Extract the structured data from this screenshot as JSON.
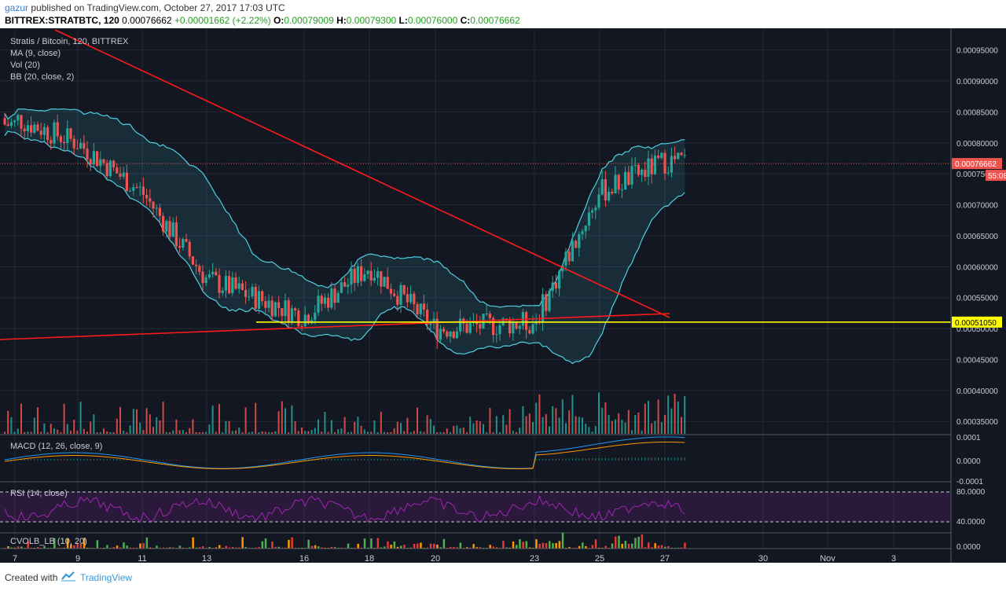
{
  "header": {
    "author": "gazur",
    "published": "published on TradingView.com, October 27, 2017 17:03 UTC",
    "symbol": "BITTREX:STRATBTC, 120",
    "last_price": "0.00076662",
    "change": "+0.00001662 (+2.22%)",
    "o_label": "O:",
    "o_value": "0.00079009",
    "h_label": "H:",
    "h_value": "0.00079300",
    "l_label": "L:",
    "l_value": "0.00076000",
    "c_label": "C:",
    "c_value": "0.00076662"
  },
  "colors": {
    "background": "#131722",
    "up": "#26a69a",
    "down": "#ef5350",
    "bollinger": "#4dd0e1",
    "trendline": "#ff1a1a",
    "support_line": "#ffff00",
    "macd_line": "#2196f3",
    "signal_line": "#ff9800",
    "rsi_line": "#9c27b0"
  },
  "chart": {
    "legend": [
      "Stratis / Bitcoin, 120, BITTREX",
      "MA (9, close)",
      "Vol (20)",
      "BB (20, close, 2)"
    ],
    "y_ticks": [
      "0.00095000",
      "0.00090000",
      "0.00085000",
      "0.00080000",
      "0.00075000",
      "0.00070000",
      "0.00065000",
      "0.00060000",
      "0.00055000",
      "0.00050000",
      "0.00045000",
      "0.00040000",
      "0.00035000"
    ],
    "price_tag": "0.00076662",
    "countdown_tag": "55:08",
    "support_tag": "0.00051050",
    "x_ticks": [
      "7",
      "9",
      "11",
      "13",
      "16",
      "18",
      "20",
      "23",
      "25",
      "27",
      "30",
      "Nov",
      "3"
    ]
  },
  "macd": {
    "label": "MACD (12, 26, close, 9)",
    "ticks": [
      "0.0001",
      "0.0000",
      "-0.0001"
    ]
  },
  "rsi": {
    "label": "RSI (14, close)",
    "ticks": [
      "80.0000",
      "40.0000"
    ]
  },
  "cvolb": {
    "label": "CVOLB_LB (10, 20)",
    "ticks": [
      "0.0000"
    ]
  },
  "chart_data": {
    "type": "line",
    "x": [
      "7",
      "9",
      "11",
      "13",
      "16",
      "18",
      "20",
      "23",
      "25",
      "27"
    ],
    "values": [
      0.00084,
      0.0008,
      0.00072,
      0.00058,
      0.00052,
      0.0006,
      0.0005,
      0.00051,
      0.00072,
      0.00077
    ],
    "ylim": [
      0.00033,
      0.00098
    ],
    "grid": true,
    "annotations": {
      "support_level": 0.0005105,
      "current_price": 0.00076662
    }
  },
  "footer": {
    "created": "Created with",
    "brand": "TradingView"
  }
}
